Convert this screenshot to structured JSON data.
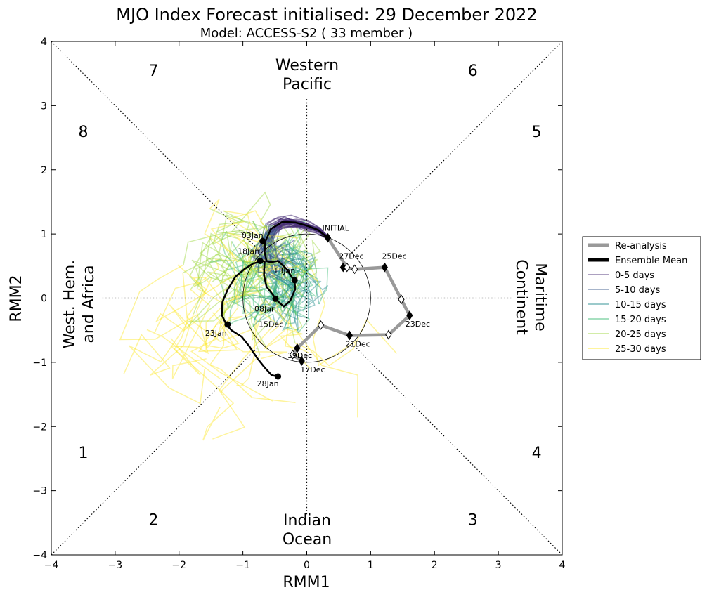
{
  "chart_data": {
    "type": "line",
    "title": "MJO Index Forecast initialised:  29  December 2022",
    "subtitle": "Model: ACCESS-S2 ( 33 member )",
    "xlabel": "RMM1",
    "ylabel": "RMM2",
    "xlim": [
      -4,
      4
    ],
    "ylim": [
      -4,
      4
    ],
    "xticks": [
      "−4",
      "−3",
      "−2",
      "−1",
      "0",
      "1",
      "2",
      "3",
      "4"
    ],
    "yticks": [
      "−4",
      "−3",
      "−2",
      "−1",
      "0",
      "1",
      "2",
      "3",
      "4"
    ],
    "phases": [
      {
        "label": "1",
        "x": -3.5,
        "y": -2.4
      },
      {
        "label": "2",
        "x": -2.4,
        "y": -3.45
      },
      {
        "label": "3",
        "x": 2.6,
        "y": -3.45
      },
      {
        "label": "4",
        "x": 3.6,
        "y": -2.4
      },
      {
        "label": "5",
        "x": 3.6,
        "y": 2.6
      },
      {
        "label": "6",
        "x": 2.6,
        "y": 3.55
      },
      {
        "label": "7",
        "x": -2.4,
        "y": 3.55
      },
      {
        "label": "8",
        "x": -3.5,
        "y": 2.6
      }
    ],
    "regions": {
      "top": [
        "Western",
        "Pacific"
      ],
      "bottom": [
        "Indian",
        "Ocean"
      ],
      "left": [
        "West. Hem.",
        "and Africa"
      ],
      "right": [
        "Maritime",
        "Continent"
      ]
    },
    "reanalysis": {
      "name": "Re-analysis",
      "points": [
        {
          "x": -0.08,
          "y": -0.98,
          "label": "17Dec",
          "filled": true
        },
        {
          "x": -0.22,
          "y": -0.88,
          "label": "",
          "filled": false
        },
        {
          "x": -0.15,
          "y": -0.78,
          "label": "19Dec",
          "filled": true
        },
        {
          "x": 0.22,
          "y": -0.42,
          "label": "",
          "filled": false
        },
        {
          "x": 0.67,
          "y": -0.58,
          "label": "21Dec",
          "filled": true
        },
        {
          "x": 1.28,
          "y": -0.57,
          "label": "",
          "filled": false
        },
        {
          "x": 1.61,
          "y": -0.27,
          "label": "23Dec",
          "filled": true
        },
        {
          "x": 1.48,
          "y": -0.02,
          "label": "",
          "filled": false
        },
        {
          "x": 1.22,
          "y": 0.48,
          "label": "25Dec",
          "filled": true
        },
        {
          "x": 0.75,
          "y": 0.45,
          "label": "",
          "filled": false
        },
        {
          "x": 0.57,
          "y": 0.48,
          "label": "27Dec",
          "filled": true
        },
        {
          "x": 0.63,
          "y": 0.48,
          "label": "",
          "filled": false
        },
        {
          "x": 0.33,
          "y": 0.94,
          "label": "INITIAL",
          "filled": true
        }
      ]
    },
    "ensemble_mean": {
      "name": "Ensemble Mean",
      "x": [
        0.33,
        0.18,
        0.0,
        -0.18,
        -0.38,
        -0.56,
        -0.65,
        -0.66,
        -0.63,
        -0.57,
        -0.45,
        -0.32,
        -0.19,
        -0.18,
        -0.26,
        -0.36,
        -0.44,
        -0.52,
        -0.63,
        -0.67,
        -0.66,
        -0.69,
        -0.84,
        -0.98,
        -1.12,
        -1.24,
        -1.32,
        -1.33,
        -1.26,
        -1.18,
        -1.02,
        -0.9,
        -0.78,
        -0.66,
        -0.55,
        -0.46,
        -0.43
      ],
      "y": [
        0.94,
        1.06,
        1.13,
        1.18,
        1.19,
        1.08,
        0.88,
        0.72,
        0.58,
        0.56,
        0.58,
        0.46,
        0.26,
        0.14,
        -0.04,
        -0.13,
        -0.06,
        0.04,
        0.18,
        0.36,
        0.57,
        0.58,
        0.54,
        0.45,
        0.33,
        0.13,
        -0.06,
        -0.26,
        -0.41,
        -0.5,
        -0.6,
        -0.75,
        -0.93,
        -1.08,
        -1.2,
        -1.22,
        -1.22
      ],
      "labels": [
        {
          "text": "03Jan",
          "x": -0.69,
          "y": 0.89
        },
        {
          "text": "08Jan",
          "x": -0.49,
          "y": -0.01
        },
        {
          "text": "13Jan",
          "x": -0.19,
          "y": 0.28
        },
        {
          "text": "15Dec",
          "x": -0.38,
          "y": -0.12
        },
        {
          "text": "18Jan",
          "x": -0.73,
          "y": 0.58
        },
        {
          "text": "23Jan",
          "x": -1.24,
          "y": -0.41
        },
        {
          "text": "28Jan",
          "x": -0.45,
          "y": -1.22
        }
      ]
    },
    "legend": [
      {
        "label": "Re-analysis",
        "color": "#999999",
        "width": 5
      },
      {
        "label": "Ensemble Mean",
        "color": "#000000",
        "width": 5
      },
      {
        "label": "0-5 days",
        "color": "#462c75",
        "width": 1.5
      },
      {
        "label": "5-10 days",
        "color": "#3a5a8b",
        "width": 1.5
      },
      {
        "label": "10-15 days",
        "color": "#218b8c",
        "width": 1.5
      },
      {
        "label": "15-20 days",
        "color": "#3cbc75",
        "width": 1.5
      },
      {
        "label": "20-25 days",
        "color": "#9cd63c",
        "width": 1.5
      },
      {
        "label": "25-30 days",
        "color": "#fde725",
        "width": 1.5
      }
    ],
    "member_count": 33
  }
}
